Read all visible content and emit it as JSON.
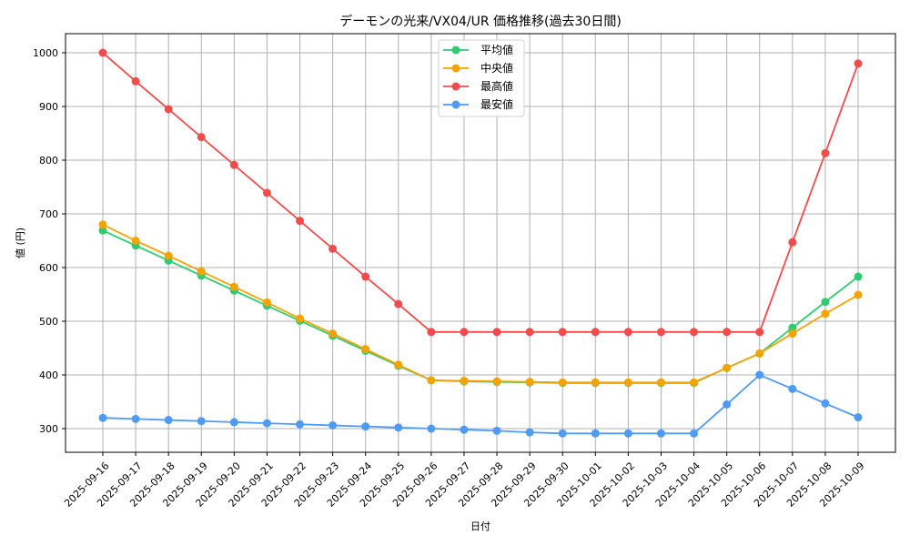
{
  "chart_data": {
    "type": "line",
    "title": "デーモンの光来/VX04/UR 価格推移(過去30日間)",
    "xlabel": "日付",
    "ylabel": "値 (円)",
    "ylim": [
      255,
      1035
    ],
    "yticks": [
      300,
      400,
      500,
      600,
      700,
      800,
      900,
      1000
    ],
    "grid": true,
    "legend_position": "upper center",
    "categories": [
      "2025-09-16",
      "2025-09-17",
      "2025-09-18",
      "2025-09-19",
      "2025-09-20",
      "2025-09-21",
      "2025-09-22",
      "2025-09-23",
      "2025-09-24",
      "2025-09-25",
      "2025-09-26",
      "2025-09-27",
      "2025-09-28",
      "2025-09-29",
      "2025-09-30",
      "2025-10-01",
      "2025-10-02",
      "2025-10-03",
      "2025-10-04",
      "2025-10-05",
      "2025-10-06",
      "2025-10-07",
      "2025-10-08",
      "2025-10-09"
    ],
    "series": [
      {
        "name": "平均値",
        "color": "#2ecc71",
        "values": [
          669,
          641,
          613,
          585,
          557,
          529,
          501,
          473,
          445,
          417,
          390,
          388,
          387,
          386,
          385,
          385,
          385,
          385,
          385,
          413,
          440,
          488,
          536,
          583
        ]
      },
      {
        "name": "中央値",
        "color": "#f5a300",
        "values": [
          680,
          650,
          622,
          593,
          564,
          535,
          505,
          477,
          448,
          419,
          390,
          389,
          388,
          387,
          386,
          386,
          386,
          386,
          386,
          413,
          440,
          477,
          514,
          549
        ]
      },
      {
        "name": "最高値",
        "color": "#f24b4b",
        "values": [
          1000,
          947,
          895,
          843,
          791,
          739,
          687,
          635,
          583,
          532,
          480,
          480,
          480,
          480,
          480,
          480,
          480,
          480,
          480,
          480,
          480,
          647,
          813,
          980
        ]
      },
      {
        "name": "最安値",
        "color": "#4d9bf5",
        "values": [
          320,
          318,
          316,
          314,
          312,
          310,
          308,
          306,
          304,
          302,
          300,
          298,
          296,
          293,
          291,
          291,
          291,
          291,
          291,
          345,
          400,
          374,
          347,
          321
        ]
      }
    ]
  }
}
